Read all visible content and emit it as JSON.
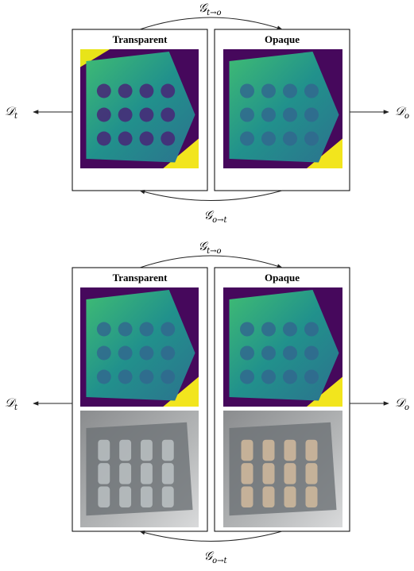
{
  "panels": [
    {
      "left_title": "Transparent",
      "right_title": "Opaque",
      "forward": {
        "symbol": "𝒢",
        "sub": "t→o"
      },
      "backward": {
        "symbol": "𝒢",
        "sub": "o→t"
      },
      "left_output": {
        "symbol": "𝒟",
        "sub": "t"
      },
      "right_output": {
        "symbol": "𝒟",
        "sub": "o"
      }
    },
    {
      "left_title": "Transparent",
      "right_title": "Opaque",
      "forward": {
        "symbol": "𝒢",
        "sub": "t→o"
      },
      "backward": {
        "symbol": "𝒢",
        "sub": "o→t"
      },
      "left_output": {
        "symbol": "𝒟",
        "sub": "t"
      },
      "right_output": {
        "symbol": "𝒟",
        "sub": "o"
      }
    }
  ]
}
